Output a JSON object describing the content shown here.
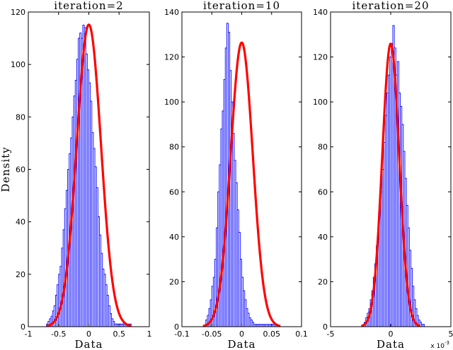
{
  "chart_data": [
    {
      "type": "bar",
      "title": "iteration=2",
      "xlabel": "Data",
      "ylabel": "Density",
      "xlim": [
        -1,
        1
      ],
      "ylim": [
        0,
        120
      ],
      "xticks": [
        -1,
        -0.5,
        0,
        0.5,
        1
      ],
      "xtick_labels": [
        "-1",
        "-0.5",
        "0",
        "0.5",
        "1"
      ],
      "yticks": [
        0,
        20,
        40,
        60,
        80,
        100,
        120
      ],
      "tick_multiplier": "",
      "bar_color": "#0000ff",
      "fit_color": "#ff0000",
      "series": [
        {
          "type": "histogram",
          "bin_start": -0.7,
          "bin_width": 0.025,
          "values": [
            1,
            2,
            3,
            4,
            6,
            8,
            12,
            16,
            20,
            23,
            30,
            37,
            45,
            52,
            60,
            66,
            72,
            80,
            88,
            94,
            102,
            110,
            112,
            110,
            115,
            114,
            104,
            98,
            93,
            86,
            74,
            68,
            61,
            53,
            42,
            35,
            28,
            22,
            20,
            16,
            12,
            8,
            5,
            3,
            2,
            1,
            1,
            1,
            1,
            1,
            1,
            1,
            1,
            1,
            1,
            1
          ]
        },
        {
          "type": "normal_fit",
          "mean": 0.0,
          "std": 0.2,
          "peak": 115.2
        }
      ]
    },
    {
      "type": "bar",
      "title": "iteration=10",
      "xlabel": "Data",
      "ylabel": "",
      "xlim": [
        -0.1,
        0.1
      ],
      "ylim": [
        0,
        140
      ],
      "xticks": [
        -0.1,
        -0.05,
        0,
        0.05,
        0.1
      ],
      "xtick_labels": [
        "-0.1",
        "-0.05",
        "0",
        "0.05",
        "0.1"
      ],
      "yticks": [
        0,
        20,
        40,
        60,
        80,
        100,
        120,
        140
      ],
      "tick_multiplier": "",
      "bar_color": "#0000ff",
      "fit_color": "#ff0000",
      "series": [
        {
          "type": "histogram",
          "bin_start": -0.06,
          "bin_width": 0.0025,
          "values": [
            3,
            5,
            8,
            12,
            18,
            22,
            30,
            44,
            60,
            72,
            88,
            96,
            110,
            124,
            135,
            131,
            114,
            100,
            86,
            74,
            64,
            52,
            42,
            30,
            22,
            16,
            12,
            8,
            6,
            4,
            3,
            2,
            1,
            1,
            1,
            1,
            1,
            1,
            1,
            1,
            1,
            1,
            1,
            1,
            1,
            1,
            1,
            1
          ]
        },
        {
          "type": "normal_fit",
          "mean": 0.0,
          "std": 0.0185,
          "peak": 126.4
        }
      ]
    },
    {
      "type": "bar",
      "title": "iteration=20",
      "xlabel": "Data",
      "ylabel": "",
      "xlim": [
        -5,
        5
      ],
      "ylim": [
        0,
        140
      ],
      "xticks": [
        -5,
        0,
        5
      ],
      "xtick_labels": [
        "-5",
        "0",
        "5"
      ],
      "yticks": [
        0,
        20,
        40,
        60,
        80,
        100,
        120,
        140
      ],
      "tick_multiplier": "x 10^-3",
      "bar_color": "#0000ff",
      "fit_color": "#ff0000",
      "series": [
        {
          "type": "histogram",
          "bin_start": -2.2,
          "bin_width": 0.125,
          "values": [
            2,
            4,
            6,
            8,
            12,
            16,
            22,
            28,
            36,
            44,
            54,
            60,
            70,
            82,
            94,
            104,
            112,
            120,
            126,
            134,
            124,
            112,
            118,
            104,
            98,
            90,
            78,
            66,
            54,
            44,
            34,
            26,
            18,
            12,
            8,
            5,
            3,
            2,
            1,
            1
          ]
        },
        {
          "type": "normal_fit",
          "mean": 0.0,
          "std": 0.7,
          "peak": 125.9
        }
      ]
    }
  ]
}
